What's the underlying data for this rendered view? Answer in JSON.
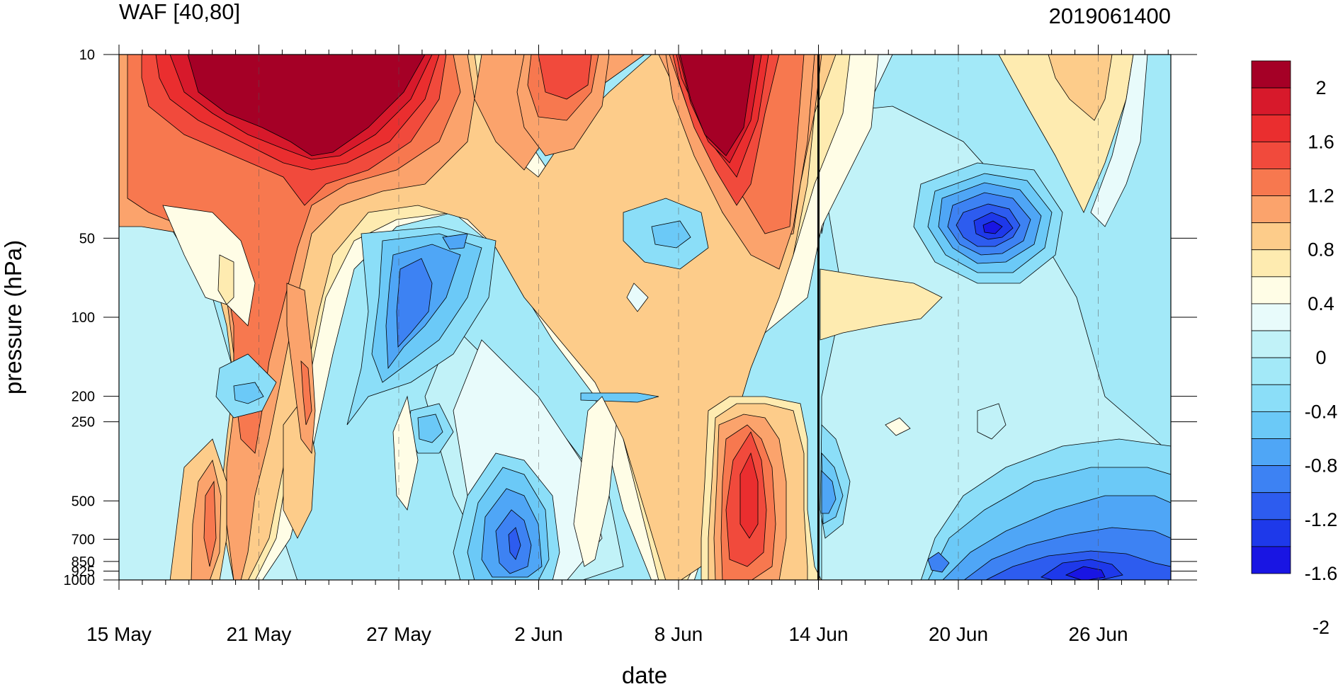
{
  "chart_data": {
    "type": "heatmap",
    "title_left": "WAF [40,80]",
    "title_right": "2019061400",
    "xlabel": "date",
    "ylabel": "pressure (hPa)",
    "x_ticks": [
      "15 May",
      "21 May",
      "27 May",
      "2 Jun",
      "8 Jun",
      "14 Jun",
      "20 Jun",
      "26 Jun"
    ],
    "y_ticks": [
      "10",
      "50",
      "100",
      "200",
      "250",
      "500",
      "700",
      "850",
      "925",
      "1000"
    ],
    "y_tick_values": [
      10,
      50,
      100,
      200,
      250,
      500,
      700,
      850,
      925,
      1000
    ],
    "x_range": [
      "15 May",
      "29 Jun"
    ],
    "y_range": [
      10,
      1000
    ],
    "y_scale": "log",
    "vertical_marker": "14 Jun",
    "colorbar": {
      "labels": [
        "2",
        "1.6",
        "1.2",
        "0.8",
        "0.4",
        "0",
        "-0.4",
        "-0.8",
        "-1.2",
        "-1.6",
        "-2"
      ],
      "colors": [
        "#a50026",
        "#d7192b",
        "#ea2e2f",
        "#f14a3c",
        "#f7784f",
        "#fba36c",
        "#fdcc8a",
        "#feebb0",
        "#fffde6",
        "#e8fbfb",
        "#c1f2f8",
        "#a3e9f8",
        "#8bdef8",
        "#6bc9f7",
        "#4fa6f6",
        "#3d82f3",
        "#2d5cef",
        "#1e39ea",
        "#1915e3"
      ]
    },
    "series": [
      {
        "name": "positive_center_10hPa",
        "x": [
          "20 May",
          "23 May",
          "26 May"
        ],
        "values": [
          2.4,
          2.6,
          2.4
        ]
      },
      {
        "name": "positive_center_10hPa_b",
        "x": [
          "8 Jun",
          "9 Jun",
          "10 Jun"
        ],
        "values": [
          2.2,
          2.3,
          2.1
        ]
      },
      {
        "name": "negative_center_50hPa",
        "x": [
          "20 Jun",
          "21 Jun",
          "22 Jun"
        ],
        "values": [
          -1.9,
          -2.1,
          -1.9
        ]
      },
      {
        "name": "negative_center_925hPa",
        "x": [
          "24 Jun",
          "25 Jun",
          "26 Jun"
        ],
        "values": [
          -1.7,
          -1.9,
          -1.7
        ]
      }
    ]
  }
}
